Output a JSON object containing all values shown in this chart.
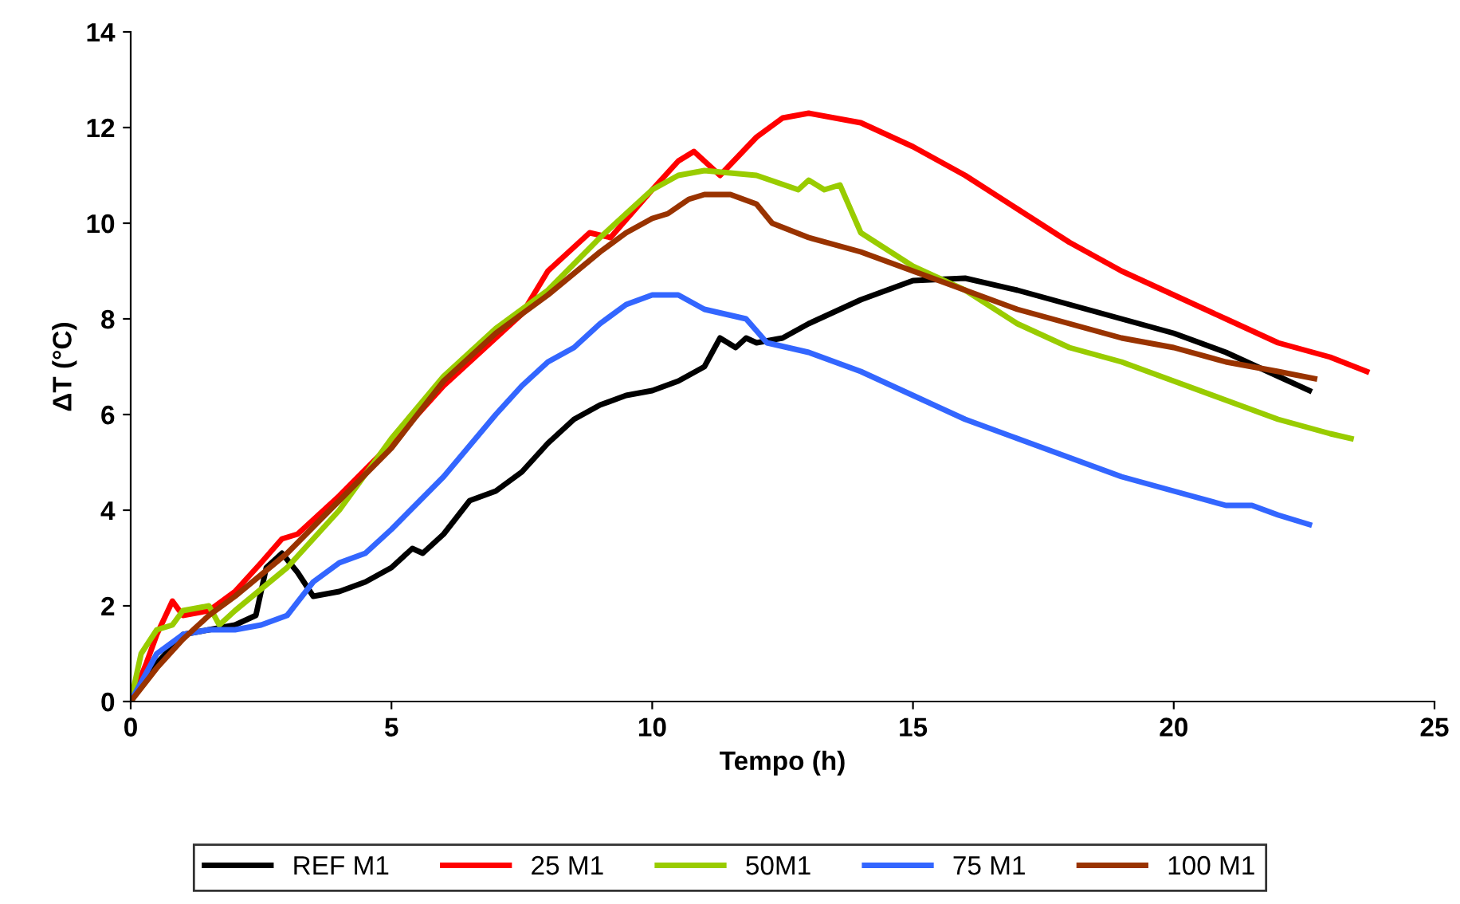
{
  "chart_data": {
    "type": "line",
    "xlabel": "Tempo (h)",
    "ylabel": "ΔT (°C)",
    "xlim": [
      0,
      25
    ],
    "xticks": [
      0,
      5,
      10,
      15,
      20,
      25
    ],
    "ylim": [
      0,
      14
    ],
    "yticks": [
      0,
      2,
      4,
      6,
      8,
      10,
      12,
      14
    ],
    "grid": false,
    "legend": "bottom",
    "marker": "none",
    "line_style": "solid",
    "series": [
      {
        "name": "REF M1",
        "color": "#000000",
        "x": [
          0,
          0.5,
          1,
          1.5,
          2,
          2.4,
          2.6,
          2.9,
          3.2,
          3.5,
          4,
          4.5,
          5,
          5.4,
          5.6,
          6,
          6.5,
          7,
          7.5,
          8,
          8.5,
          9,
          9.5,
          10,
          10.5,
          11,
          11.3,
          11.6,
          11.8,
          12,
          12.5,
          13,
          14,
          15,
          16,
          17,
          18,
          19,
          20,
          21,
          22,
          22.6
        ],
        "values": [
          0,
          0.8,
          1.4,
          1.5,
          1.6,
          1.8,
          2.8,
          3.1,
          2.7,
          2.2,
          2.3,
          2.5,
          2.8,
          3.2,
          3.1,
          3.5,
          4.2,
          4.4,
          4.8,
          5.4,
          5.9,
          6.2,
          6.4,
          6.5,
          6.7,
          7.0,
          7.6,
          7.4,
          7.6,
          7.5,
          7.6,
          7.9,
          8.4,
          8.8,
          8.85,
          8.6,
          8.3,
          8.0,
          7.7,
          7.3,
          6.8,
          6.5
        ]
      },
      {
        "name": "25 M1",
        "color": "#ff0000",
        "x": [
          0,
          0.3,
          0.5,
          0.8,
          1,
          1.5,
          2,
          2.5,
          2.9,
          3.2,
          4,
          5,
          6,
          7,
          7.5,
          8,
          8.5,
          8.8,
          9.2,
          10,
          10.5,
          10.8,
          11.3,
          12,
          12.5,
          13,
          14,
          15,
          16,
          17,
          18,
          19,
          20,
          21,
          22,
          23,
          23.7
        ],
        "values": [
          0,
          0.8,
          1.4,
          2.1,
          1.8,
          1.9,
          2.3,
          2.9,
          3.4,
          3.5,
          4.3,
          5.4,
          6.6,
          7.6,
          8.1,
          9.0,
          9.5,
          9.8,
          9.7,
          10.7,
          11.3,
          11.5,
          11.0,
          11.8,
          12.2,
          12.3,
          12.1,
          11.6,
          11.0,
          10.3,
          9.6,
          9.0,
          8.5,
          8.0,
          7.5,
          7.2,
          6.9
        ]
      },
      {
        "name": "50M1",
        "color": "#99cc00",
        "x": [
          0,
          0.2,
          0.5,
          0.8,
          1,
          1.5,
          1.7,
          2,
          3,
          4,
          5,
          6,
          7,
          8,
          9,
          10,
          10.5,
          11,
          12,
          12.8,
          13,
          13.3,
          13.6,
          14,
          15,
          16,
          17,
          18,
          19,
          20,
          21,
          22,
          23,
          23.4
        ],
        "values": [
          0,
          1.0,
          1.5,
          1.6,
          1.9,
          2.0,
          1.6,
          1.9,
          2.8,
          4.0,
          5.5,
          6.8,
          7.8,
          8.6,
          9.7,
          10.7,
          11.0,
          11.1,
          11.0,
          10.7,
          10.9,
          10.7,
          10.8,
          9.8,
          9.1,
          8.6,
          7.9,
          7.4,
          7.1,
          6.7,
          6.3,
          5.9,
          5.6,
          5.5
        ]
      },
      {
        "name": "75 M1",
        "color": "#3366ff",
        "x": [
          0,
          0.5,
          1,
          1.5,
          2,
          2.5,
          3,
          3.5,
          4,
          4.5,
          5,
          6,
          7,
          7.5,
          8,
          8.5,
          9,
          9.5,
          10,
          10.5,
          11,
          11.8,
          12.2,
          13,
          14,
          15,
          16,
          17,
          18,
          19,
          20,
          21,
          21.5,
          22,
          22.6
        ],
        "values": [
          0,
          1.0,
          1.4,
          1.5,
          1.5,
          1.6,
          1.8,
          2.5,
          2.9,
          3.1,
          3.6,
          4.7,
          6.0,
          6.6,
          7.1,
          7.4,
          7.9,
          8.3,
          8.5,
          8.5,
          8.2,
          8.0,
          7.5,
          7.3,
          6.9,
          6.4,
          5.9,
          5.5,
          5.1,
          4.7,
          4.4,
          4.1,
          4.1,
          3.9,
          3.7
        ]
      },
      {
        "name": "100 M1",
        "color": "#993300",
        "x": [
          0,
          0.5,
          1,
          1.5,
          2,
          3,
          4,
          5,
          6,
          7,
          8,
          9,
          9.5,
          10,
          10.3,
          10.7,
          11,
          11.5,
          12,
          12.3,
          13,
          14,
          15,
          16,
          17,
          18,
          19,
          20,
          21,
          22,
          22.7
        ],
        "values": [
          0,
          0.7,
          1.3,
          1.8,
          2.2,
          3.1,
          4.2,
          5.3,
          6.7,
          7.7,
          8.5,
          9.4,
          9.8,
          10.1,
          10.2,
          10.5,
          10.6,
          10.6,
          10.4,
          10.0,
          9.7,
          9.4,
          9.0,
          8.6,
          8.2,
          7.9,
          7.6,
          7.4,
          7.1,
          6.9,
          6.75
        ]
      }
    ]
  }
}
